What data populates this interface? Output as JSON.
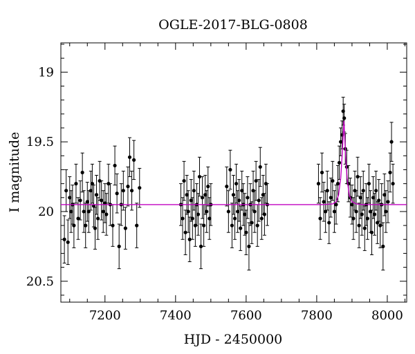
{
  "chart_data": {
    "type": "scatter",
    "title": "OGLE-2017-BLG-0808",
    "xlabel": "HJD - 2450000",
    "ylabel": "I magnitude",
    "xlim": [
      7075,
      8055
    ],
    "ylim": [
      20.65,
      18.79
    ],
    "y_axis_inverted": true,
    "grid": false,
    "x_ticks": [
      "7200",
      "7400",
      "7600",
      "7800",
      "8000"
    ],
    "x_tick_values": [
      7200,
      7400,
      7600,
      7800,
      8000
    ],
    "y_ticks": [
      "19",
      "19.5",
      "20",
      "20.5"
    ],
    "y_tick_values": [
      19,
      19.5,
      20,
      20.5
    ],
    "model_color": "#c000c0",
    "point_color": "#000000",
    "model": {
      "baseline": 19.95,
      "peak_hjd": 7877,
      "peak_mag": 19.35,
      "curve": [
        [
          7075,
          19.95
        ],
        [
          7820,
          19.95
        ],
        [
          7845,
          19.945
        ],
        [
          7855,
          19.93
        ],
        [
          7862,
          19.88
        ],
        [
          7868,
          19.76
        ],
        [
          7872,
          19.6
        ],
        [
          7875,
          19.45
        ],
        [
          7877,
          19.35
        ],
        [
          7879,
          19.45
        ],
        [
          7882,
          19.6
        ],
        [
          7886,
          19.76
        ],
        [
          7892,
          19.88
        ],
        [
          7900,
          19.93
        ],
        [
          7912,
          19.945
        ],
        [
          7930,
          19.95
        ],
        [
          8055,
          19.95
        ]
      ]
    },
    "points": [
      [
        7085,
        20.2,
        0.17
      ],
      [
        7090,
        19.85,
        0.15
      ],
      [
        7095,
        20.22,
        0.16
      ],
      [
        7100,
        19.9,
        0.15
      ],
      [
        7104,
        20.0,
        0.15
      ],
      [
        7108,
        19.95,
        0.14
      ],
      [
        7112,
        20.1,
        0.16
      ],
      [
        7118,
        19.8,
        0.14
      ],
      [
        7124,
        20.05,
        0.15
      ],
      [
        7130,
        19.92,
        0.14
      ],
      [
        7136,
        19.72,
        0.14
      ],
      [
        7140,
        20.0,
        0.15
      ],
      [
        7145,
        20.1,
        0.16
      ],
      [
        7150,
        19.93,
        0.14
      ],
      [
        7154,
        20.0,
        0.15
      ],
      [
        7160,
        19.85,
        0.14
      ],
      [
        7164,
        19.8,
        0.14
      ],
      [
        7168,
        19.96,
        0.15
      ],
      [
        7172,
        20.12,
        0.15
      ],
      [
        7176,
        19.88,
        0.14
      ],
      [
        7180,
        20.05,
        0.15
      ],
      [
        7185,
        19.78,
        0.14
      ],
      [
        7190,
        19.92,
        0.14
      ],
      [
        7195,
        20.0,
        0.15
      ],
      [
        7200,
        19.94,
        0.14
      ],
      [
        7204,
        20.02,
        0.15
      ],
      [
        7210,
        19.8,
        0.14
      ],
      [
        7215,
        19.95,
        0.15
      ],
      [
        7222,
        20.1,
        0.15
      ],
      [
        7228,
        19.67,
        0.14
      ],
      [
        7234,
        19.87,
        0.14
      ],
      [
        7240,
        20.25,
        0.16
      ],
      [
        7246,
        19.95,
        0.15
      ],
      [
        7252,
        19.85,
        0.14
      ],
      [
        7258,
        20.12,
        0.15
      ],
      [
        7265,
        19.82,
        0.14
      ],
      [
        7270,
        19.61,
        0.14
      ],
      [
        7276,
        19.85,
        0.14
      ],
      [
        7282,
        19.63,
        0.14
      ],
      [
        7290,
        20.1,
        0.16
      ],
      [
        7298,
        19.83,
        0.14
      ],
      [
        7415,
        19.95,
        0.15
      ],
      [
        7420,
        20.05,
        0.15
      ],
      [
        7424,
        19.78,
        0.14
      ],
      [
        7428,
        20.15,
        0.16
      ],
      [
        7432,
        19.88,
        0.14
      ],
      [
        7436,
        20.0,
        0.15
      ],
      [
        7440,
        20.2,
        0.16
      ],
      [
        7444,
        19.92,
        0.15
      ],
      [
        7448,
        20.05,
        0.15
      ],
      [
        7452,
        19.85,
        0.14
      ],
      [
        7456,
        20.1,
        0.15
      ],
      [
        7460,
        19.95,
        0.15
      ],
      [
        7464,
        20.02,
        0.15
      ],
      [
        7468,
        19.75,
        0.14
      ],
      [
        7472,
        20.25,
        0.16
      ],
      [
        7476,
        19.9,
        0.15
      ],
      [
        7480,
        20.1,
        0.15
      ],
      [
        7484,
        19.88,
        0.14
      ],
      [
        7488,
        20.0,
        0.15
      ],
      [
        7492,
        19.82,
        0.14
      ],
      [
        7496,
        20.05,
        0.15
      ],
      [
        7500,
        19.95,
        0.15
      ],
      [
        7545,
        19.82,
        0.14
      ],
      [
        7550,
        20.0,
        0.15
      ],
      [
        7555,
        19.7,
        0.14
      ],
      [
        7560,
        20.1,
        0.16
      ],
      [
        7564,
        19.88,
        0.14
      ],
      [
        7568,
        20.05,
        0.15
      ],
      [
        7572,
        19.8,
        0.14
      ],
      [
        7576,
        20.0,
        0.15
      ],
      [
        7580,
        19.92,
        0.15
      ],
      [
        7584,
        20.12,
        0.16
      ],
      [
        7588,
        19.85,
        0.14
      ],
      [
        7592,
        19.95,
        0.15
      ],
      [
        7596,
        20.02,
        0.15
      ],
      [
        7600,
        20.15,
        0.16
      ],
      [
        7604,
        19.9,
        0.15
      ],
      [
        7608,
        20.25,
        0.17
      ],
      [
        7612,
        19.95,
        0.15
      ],
      [
        7616,
        20.08,
        0.15
      ],
      [
        7620,
        19.85,
        0.14
      ],
      [
        7624,
        20.0,
        0.15
      ],
      [
        7628,
        19.78,
        0.14
      ],
      [
        7632,
        20.1,
        0.15
      ],
      [
        7636,
        19.92,
        0.15
      ],
      [
        7640,
        19.68,
        0.14
      ],
      [
        7644,
        20.05,
        0.15
      ],
      [
        7648,
        19.88,
        0.14
      ],
      [
        7652,
        20.02,
        0.15
      ],
      [
        7656,
        19.8,
        0.14
      ],
      [
        7660,
        19.95,
        0.15
      ],
      [
        7805,
        19.8,
        0.14
      ],
      [
        7810,
        20.05,
        0.15
      ],
      [
        7815,
        19.72,
        0.14
      ],
      [
        7820,
        19.93,
        0.14
      ],
      [
        7825,
        20.0,
        0.15
      ],
      [
        7830,
        19.85,
        0.14
      ],
      [
        7835,
        20.08,
        0.15
      ],
      [
        7840,
        19.9,
        0.14
      ],
      [
        7845,
        19.78,
        0.14
      ],
      [
        7850,
        20.0,
        0.15
      ],
      [
        7855,
        19.95,
        0.14
      ],
      [
        7860,
        19.8,
        0.13
      ],
      [
        7864,
        19.65,
        0.12
      ],
      [
        7868,
        19.5,
        0.1
      ],
      [
        7872,
        19.45,
        0.1
      ],
      [
        7875,
        19.28,
        0.1
      ],
      [
        7878,
        19.33,
        0.1
      ],
      [
        7881,
        19.55,
        0.11
      ],
      [
        7885,
        19.68,
        0.12
      ],
      [
        7890,
        19.8,
        0.13
      ],
      [
        7895,
        19.9,
        0.14
      ],
      [
        7900,
        19.95,
        0.14
      ],
      [
        7904,
        20.05,
        0.15
      ],
      [
        7908,
        19.85,
        0.14
      ],
      [
        7912,
        20.0,
        0.15
      ],
      [
        7916,
        19.75,
        0.14
      ],
      [
        7920,
        20.1,
        0.16
      ],
      [
        7924,
        19.9,
        0.15
      ],
      [
        7928,
        20.02,
        0.15
      ],
      [
        7932,
        19.85,
        0.14
      ],
      [
        7936,
        20.12,
        0.16
      ],
      [
        7940,
        19.95,
        0.15
      ],
      [
        7944,
        20.05,
        0.15
      ],
      [
        7948,
        19.8,
        0.14
      ],
      [
        7952,
        20.0,
        0.15
      ],
      [
        7956,
        20.15,
        0.16
      ],
      [
        7960,
        19.9,
        0.15
      ],
      [
        7964,
        20.02,
        0.15
      ],
      [
        7968,
        19.85,
        0.14
      ],
      [
        7972,
        20.08,
        0.15
      ],
      [
        7976,
        19.92,
        0.15
      ],
      [
        7980,
        20.1,
        0.16
      ],
      [
        7984,
        19.95,
        0.15
      ],
      [
        7988,
        20.25,
        0.17
      ],
      [
        7992,
        19.88,
        0.15
      ],
      [
        7996,
        20.0,
        0.15
      ],
      [
        8002,
        19.93,
        0.15
      ],
      [
        8008,
        19.72,
        0.14
      ],
      [
        8012,
        19.5,
        0.14
      ],
      [
        8016,
        19.8,
        0.14
      ]
    ]
  }
}
